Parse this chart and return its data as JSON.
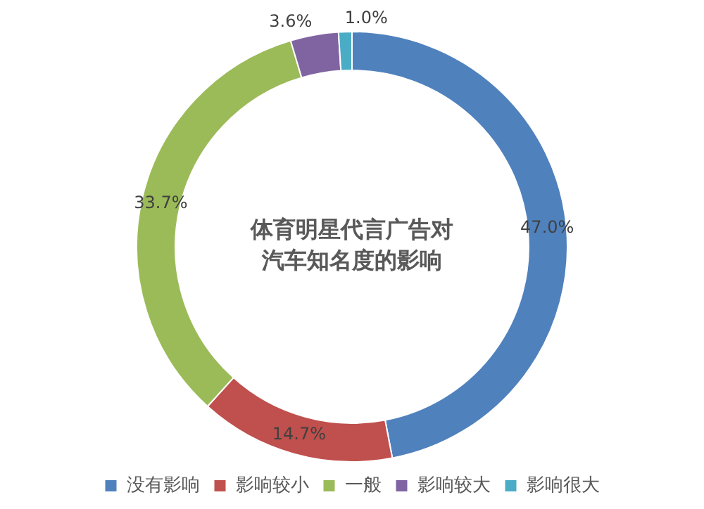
{
  "chart_data": {
    "type": "donut",
    "title": "体育明星代言广告对汽车知名度的影响",
    "categories": [
      "没有影响",
      "影响较小",
      "一般",
      "影响较大",
      "影响很大"
    ],
    "values": [
      47.0,
      14.7,
      33.7,
      3.6,
      1.0
    ],
    "colors": [
      "#4f81bd",
      "#c0504d",
      "#9bbb59",
      "#8064a2",
      "#4bacc6"
    ],
    "value_labels": [
      "47.0%",
      "14.7%",
      "33.7%",
      "3.6%",
      "1.0%"
    ],
    "legend": "bottom"
  }
}
